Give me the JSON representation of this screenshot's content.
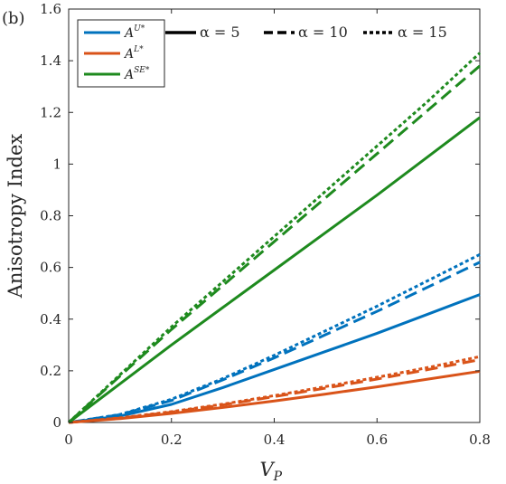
{
  "panel_label": "(b)",
  "chart_data": {
    "type": "line",
    "xlabel_base": "V",
    "xlabel_sub": "P",
    "ylabel": "Anisotropy Index",
    "xlim": [
      0,
      0.8
    ],
    "ylim": [
      0,
      1.6
    ],
    "xticks": [
      0,
      0.2,
      0.4,
      0.6,
      0.8
    ],
    "xtick_labels": [
      "0",
      "0.2",
      "0.4",
      "0.6",
      "0.8"
    ],
    "yticks": [
      0,
      0.2,
      0.4,
      0.6,
      0.8,
      1.0,
      1.2,
      1.4,
      1.6
    ],
    "ytick_labels": [
      "0",
      "0.2",
      "0.4",
      "0.6",
      "0.8",
      "1",
      "1.2",
      "1.4",
      "1.6"
    ],
    "grid": false,
    "legend_position": "top-left",
    "x": [
      0,
      0.1,
      0.2,
      0.3,
      0.4,
      0.5,
      0.6,
      0.7,
      0.8
    ],
    "series_legend": [
      {
        "base": "A",
        "sup": "U*",
        "color": "#0072BD"
      },
      {
        "base": "A",
        "sup": "L*",
        "color": "#D95319"
      },
      {
        "base": "A",
        "sup": "SE*",
        "color": "#1E8A1E"
      }
    ],
    "style_legend": [
      {
        "label": "α = 5",
        "style": "solid"
      },
      {
        "label": "α = 10",
        "style": "dashed"
      },
      {
        "label": "α = 15",
        "style": "dotted"
      }
    ],
    "series": [
      {
        "key": "AU",
        "alpha": "α = 5",
        "style": "solid",
        "color": "#0072BD",
        "values": [
          0,
          0.025,
          0.07,
          0.135,
          0.205,
          0.275,
          0.345,
          0.42,
          0.495
        ]
      },
      {
        "key": "AU",
        "alpha": "α = 10",
        "style": "dashed",
        "color": "#0072BD",
        "values": [
          0,
          0.03,
          0.085,
          0.165,
          0.25,
          0.34,
          0.43,
          0.525,
          0.62
        ]
      },
      {
        "key": "AU",
        "alpha": "α = 15",
        "style": "dotted",
        "color": "#0072BD",
        "values": [
          0,
          0.031,
          0.09,
          0.17,
          0.26,
          0.355,
          0.45,
          0.55,
          0.65
        ]
      },
      {
        "key": "AL",
        "alpha": "α = 5",
        "style": "solid",
        "color": "#D95319",
        "values": [
          0,
          0.015,
          0.035,
          0.058,
          0.083,
          0.11,
          0.138,
          0.168,
          0.198
        ]
      },
      {
        "key": "AL",
        "alpha": "α = 10",
        "style": "dashed",
        "color": "#D95319",
        "values": [
          0,
          0.017,
          0.04,
          0.068,
          0.1,
          0.133,
          0.168,
          0.205,
          0.243
        ]
      },
      {
        "key": "AL",
        "alpha": "α = 15",
        "style": "dotted",
        "color": "#D95319",
        "values": [
          0,
          0.018,
          0.042,
          0.071,
          0.104,
          0.139,
          0.175,
          0.213,
          0.255
        ]
      },
      {
        "key": "ASE",
        "alpha": "α = 5",
        "style": "solid",
        "color": "#1E8A1E",
        "values": [
          0,
          0.15,
          0.3,
          0.445,
          0.59,
          0.735,
          0.88,
          1.03,
          1.18
        ]
      },
      {
        "key": "ASE",
        "alpha": "α = 10",
        "style": "dashed",
        "color": "#1E8A1E",
        "values": [
          0,
          0.18,
          0.36,
          0.53,
          0.7,
          0.87,
          1.04,
          1.21,
          1.38
        ]
      },
      {
        "key": "ASE",
        "alpha": "α = 15",
        "style": "dotted",
        "color": "#1E8A1E",
        "values": [
          0,
          0.185,
          0.37,
          0.545,
          0.72,
          0.895,
          1.07,
          1.245,
          1.43
        ]
      }
    ]
  }
}
